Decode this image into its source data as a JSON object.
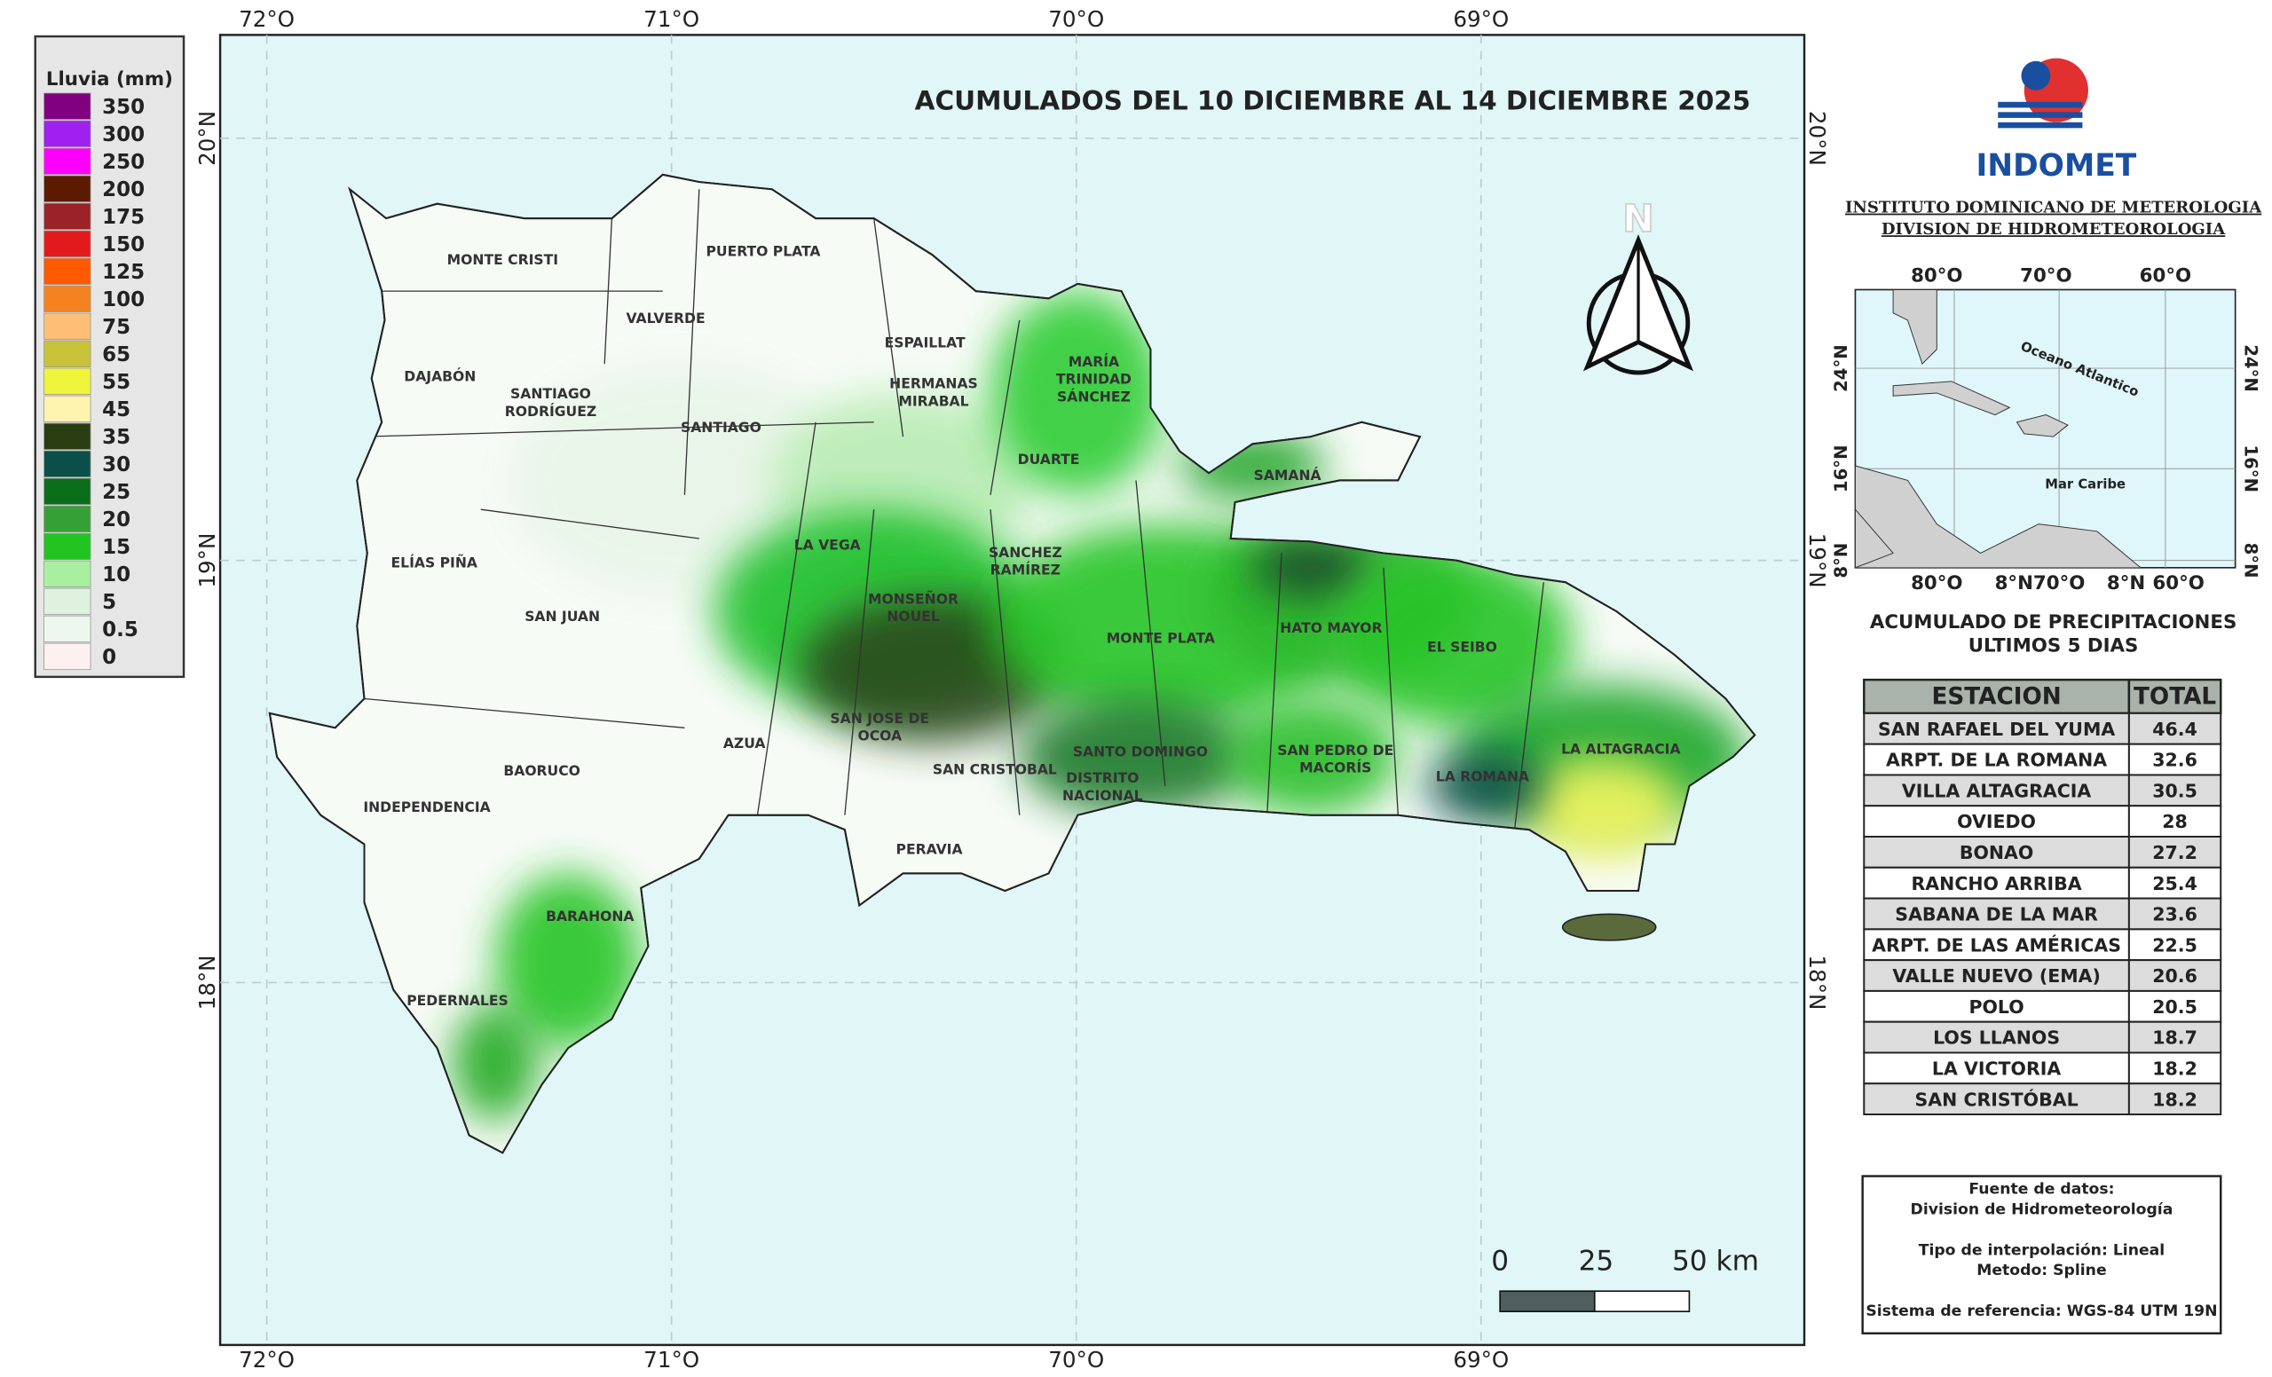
{
  "legend": {
    "title": "Lluvia (mm)",
    "items": [
      {
        "label": 350,
        "color": "#800080"
      },
      {
        "label": 300,
        "color": "#a020f0"
      },
      {
        "label": 250,
        "color": "#ff00ff"
      },
      {
        "label": 200,
        "color": "#5c1a00"
      },
      {
        "label": 175,
        "color": "#9b2226"
      },
      {
        "label": 150,
        "color": "#e31a1c"
      },
      {
        "label": 125,
        "color": "#ff5a00"
      },
      {
        "label": 100,
        "color": "#f58220"
      },
      {
        "label": 75,
        "color": "#fcbf75"
      },
      {
        "label": 65,
        "color": "#c8c23a"
      },
      {
        "label": 55,
        "color": "#eef53a"
      },
      {
        "label": 45,
        "color": "#fff3b0"
      },
      {
        "label": 35,
        "color": "#2a3d12"
      },
      {
        "label": 30,
        "color": "#0b4f4a"
      },
      {
        "label": 25,
        "color": "#0a6e1a"
      },
      {
        "label": 20,
        "color": "#35a035"
      },
      {
        "label": 15,
        "color": "#22c422"
      },
      {
        "label": 10,
        "color": "#a8f0a0"
      },
      {
        "label": 5,
        "color": "#dff2df"
      },
      {
        "label": 0.5,
        "color": "#eef7ee"
      },
      {
        "label": 0,
        "color": "#fff0f0"
      }
    ]
  },
  "map": {
    "title": "ACUMULADOS DEL  10 DICIEMBRE AL 14 DICIEMBRE 2025",
    "lon_labels": [
      "72°O",
      "71°O",
      "70°O",
      "69°O"
    ],
    "lat_labels": [
      "20°N",
      "19°N",
      "18°N"
    ],
    "north": "N",
    "scale_labels": [
      "0",
      "25",
      "50 km"
    ],
    "provinces": [
      [
        "MONTE CRISTI"
      ],
      [
        "PUERTO PLATA"
      ],
      [
        "VALVERDE"
      ],
      [
        "ESPAILLAT"
      ],
      [
        "MARÍA",
        "TRINIDAD",
        "SÁNCHEZ"
      ],
      [
        "HERMANAS",
        "MIRABAL"
      ],
      [
        "DAJABÓN"
      ],
      [
        "SANTIAGO",
        "RODRÍGUEZ"
      ],
      [
        "SANTIAGO"
      ],
      [
        "DUARTE"
      ],
      [
        "SAMANÁ"
      ],
      [
        "LA VEGA"
      ],
      [
        "SANCHEZ",
        "RAMÍREZ"
      ],
      [
        "ELÍAS PIÑA"
      ],
      [
        "SAN JUAN"
      ],
      [
        "MONSEÑOR",
        "NOUEL"
      ],
      [
        "MONTE PLATA"
      ],
      [
        "HATO MAYOR"
      ],
      [
        "EL SEIBO"
      ],
      [
        "SAN JOSE DE",
        "OCOA"
      ],
      [
        "AZUA"
      ],
      [
        "SAN CRISTOBAL"
      ],
      [
        "SANTO DOMINGO"
      ],
      [
        "SAN PEDRO DE",
        "MACORÍS"
      ],
      [
        "LA ALTAGRACIA"
      ],
      [
        "DISTRITO",
        "NACIONAL"
      ],
      [
        "LA ROMANA"
      ],
      [
        "BAORUCO"
      ],
      [
        "INDEPENDENCIA"
      ],
      [
        "PERAVIA"
      ],
      [
        "BARAHONA"
      ],
      [
        "PEDERNALES"
      ]
    ]
  },
  "header": {
    "agency": "INDOMET",
    "institute": "INSTITUTO DOMINICANO DE METEROLOGIA",
    "division": "DIVISION DE HIDROMETEOROLOGIA"
  },
  "inset": {
    "top_labels": [
      "80°O",
      "70°O",
      "60°O"
    ],
    "bottom_labels": [
      "80°O",
      "8°N",
      "70°O",
      "8°N",
      "60°O"
    ],
    "left_labels": [
      "24°N",
      "16°N",
      "8°N"
    ],
    "right_labels": [
      "24°N",
      "16°N",
      "8°N"
    ],
    "ocean": "Oceano Atlantico",
    "sea": "Mar Caribe"
  },
  "table": {
    "title": [
      "ACUMULADO DE PRECIPITACIONES",
      "ULTIMOS 5 DIAS"
    ],
    "columns": [
      "ESTACION",
      "TOTAL"
    ],
    "rows": [
      [
        "SAN RAFAEL DEL YUMA",
        46.4
      ],
      [
        "ARPT. DE LA ROMANA",
        32.6
      ],
      [
        "VILLA ALTAGRACIA",
        30.5
      ],
      [
        "OVIEDO",
        28
      ],
      [
        "BONAO",
        27.2
      ],
      [
        "RANCHO ARRIBA",
        25.4
      ],
      [
        "SABANA DE LA MAR",
        23.6
      ],
      [
        "ARPT. DE LAS AMÉRICAS",
        22.5
      ],
      [
        "VALLE NUEVO (EMA)",
        20.6
      ],
      [
        "POLO",
        20.5
      ],
      [
        "LOS LLANOS",
        18.7
      ],
      [
        "LA VICTORIA",
        18.2
      ],
      [
        "SAN CRISTÓBAL",
        18.2
      ]
    ]
  },
  "source": {
    "lines": [
      "Fuente de datos:",
      "Division de Hidrometeorología",
      "Tipo de interpolación: Lineal",
      "Metodo: Spline",
      "Sistema de referencia: WGS-84 UTM 19N"
    ]
  }
}
